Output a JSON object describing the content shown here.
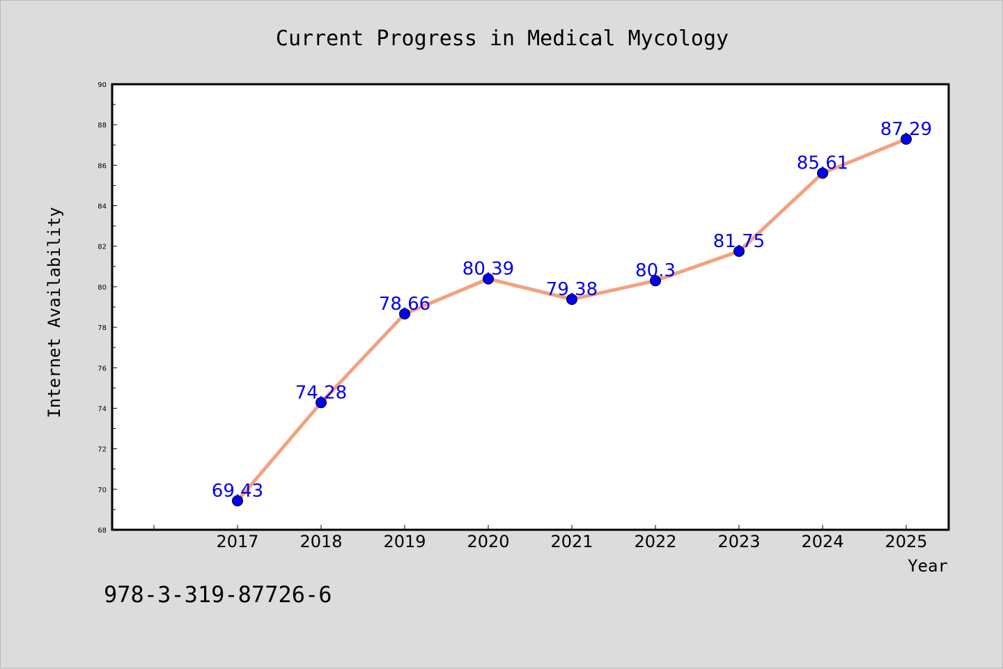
{
  "chart_data": {
    "type": "line",
    "title": "Current Progress in Medical Mycology",
    "xlabel": "Year",
    "ylabel": "Internet Availability",
    "ylim": [
      68,
      90
    ],
    "yticks": [
      68,
      70,
      72,
      74,
      76,
      78,
      80,
      82,
      84,
      86,
      88,
      90
    ],
    "x": [
      "2017",
      "2018",
      "2019",
      "2020",
      "2021",
      "2022",
      "2023",
      "2024",
      "2025"
    ],
    "values": [
      69.43,
      74.28,
      78.66,
      80.39,
      79.38,
      80.3,
      81.75,
      85.61,
      87.29
    ],
    "data_labels": [
      "69.43",
      "74.28",
      "78.66",
      "80.39",
      "79.38",
      "80.3",
      "81.75",
      "85.61",
      "87.29"
    ],
    "grid": false,
    "colors": {
      "line": "#f4a07e",
      "marker": "#0000ee",
      "data_label": "#0000ee"
    }
  },
  "footnote": "978-3-319-87726-6"
}
